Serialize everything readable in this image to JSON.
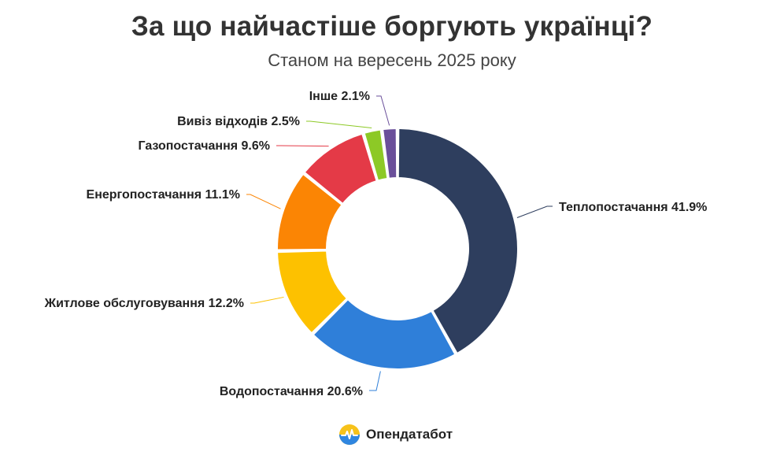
{
  "chart_data": {
    "type": "pie",
    "style": "donut",
    "title": "За що найчастіше боргують українці?",
    "subtitle": "Станом на вересень 2025 року",
    "unit": "%",
    "slices": [
      {
        "name": "Теплопостачання",
        "value": 41.9,
        "label": "Теплопостачання 41.9%",
        "color": "#2e3e5e"
      },
      {
        "name": "Водопостачання",
        "value": 20.6,
        "label": "Водопостачання 20.6%",
        "color": "#2f7fd9"
      },
      {
        "name": "Житлове обслуговування",
        "value": 12.2,
        "label": "Житлове обслуговування 12.2%",
        "color": "#fdc100"
      },
      {
        "name": "Енергопостачання",
        "value": 11.1,
        "label": "Енергопостачання 11.1%",
        "color": "#fb8504"
      },
      {
        "name": "Газопостачання",
        "value": 9.6,
        "label": "Газопостачання 9.6%",
        "color": "#e43a47"
      },
      {
        "name": "Вивіз відходів",
        "value": 2.5,
        "label": "Вивіз відходів 2.5%",
        "color": "#8dc926"
      },
      {
        "name": "Інше",
        "value": 2.1,
        "label": "Інше 2.1%",
        "color": "#6a4f9a"
      }
    ]
  },
  "brand": {
    "name": "Опендатабот",
    "logo_icon": "opendatabot-logo-icon"
  }
}
